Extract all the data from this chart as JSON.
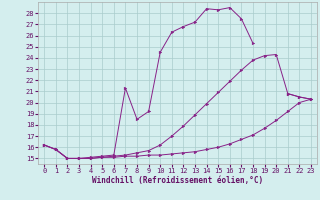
{
  "xlabel": "Windchill (Refroidissement éolien,°C)",
  "bg_color": "#d4eeee",
  "grid_color": "#aacccc",
  "line_color": "#882288",
  "ylim": [
    14.5,
    29.0
  ],
  "xlim": [
    -0.5,
    23.5
  ],
  "yticks": [
    15,
    16,
    17,
    18,
    19,
    20,
    21,
    22,
    23,
    24,
    25,
    26,
    27,
    28
  ],
  "xticks": [
    0,
    1,
    2,
    3,
    4,
    5,
    6,
    7,
    8,
    9,
    10,
    11,
    12,
    13,
    14,
    15,
    16,
    17,
    18,
    19,
    20,
    21,
    22,
    23
  ],
  "series": [
    {
      "x": [
        0,
        1,
        2,
        3,
        4,
        5,
        6,
        7,
        8,
        9,
        10,
        11,
        12,
        13,
        14,
        15,
        16,
        17,
        18,
        19,
        20,
        21,
        22,
        23
      ],
      "y": [
        16.2,
        15.8,
        15.0,
        15.0,
        15.0,
        15.1,
        15.1,
        15.2,
        15.2,
        15.3,
        15.3,
        15.4,
        15.5,
        15.6,
        15.8,
        16.0,
        16.3,
        16.7,
        17.1,
        17.7,
        18.4,
        19.2,
        20.0,
        20.3
      ]
    },
    {
      "x": [
        0,
        1,
        2,
        3,
        4,
        5,
        6,
        7,
        8,
        9,
        10,
        11,
        12,
        13,
        14,
        15,
        16,
        17,
        18,
        19,
        20,
        21,
        22,
        23
      ],
      "y": [
        16.2,
        15.8,
        15.0,
        15.0,
        15.0,
        15.1,
        15.2,
        15.3,
        15.5,
        15.7,
        16.2,
        17.0,
        17.9,
        18.9,
        19.9,
        20.9,
        21.9,
        22.9,
        23.8,
        24.2,
        24.3,
        20.8,
        20.5,
        20.3
      ]
    },
    {
      "x": [
        0,
        1,
        2,
        3,
        4,
        5,
        6,
        7,
        8,
        9,
        10,
        11,
        12,
        13,
        14,
        15,
        16,
        17,
        18,
        19,
        20,
        21,
        22,
        23
      ],
      "y": [
        16.2,
        15.8,
        15.0,
        15.0,
        15.1,
        15.2,
        15.3,
        21.3,
        18.5,
        19.2,
        24.5,
        26.3,
        26.8,
        27.2,
        28.4,
        28.3,
        28.5,
        27.5,
        25.3,
        null,
        null,
        20.8,
        20.5,
        20.3
      ]
    }
  ]
}
